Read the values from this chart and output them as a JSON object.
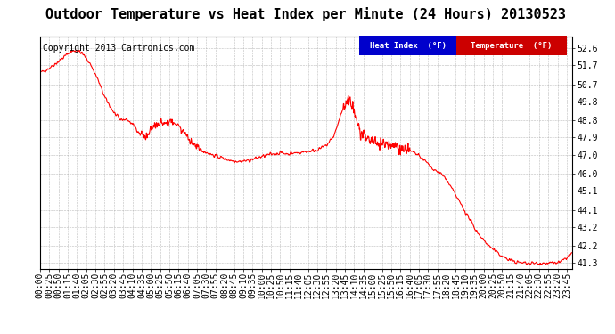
{
  "title": "Outdoor Temperature vs Heat Index per Minute (24 Hours) 20130523",
  "copyright_text": "Copyright 2013 Cartronics.com",
  "line_color": "#FF0000",
  "background_color": "#FFFFFF",
  "grid_color": "#AAAAAA",
  "yticks": [
    41.3,
    42.2,
    43.2,
    44.1,
    45.1,
    46.0,
    47.0,
    47.9,
    48.8,
    49.8,
    50.7,
    51.7,
    52.6
  ],
  "ymin": 41.0,
  "ymax": 53.2,
  "legend_heat_index_bg": "#0000CC",
  "legend_temp_bg": "#CC0000",
  "legend_text_color": "#FFFFFF",
  "legend_heat_index_label": "Heat Index  (°F)",
  "legend_temp_label": "Temperature  (°F)",
  "title_fontsize": 11,
  "copyright_fontsize": 7,
  "tick_fontsize": 7,
  "axes_bg": "#FFFFFF",
  "fig_width": 6.9,
  "fig_height": 3.75,
  "fig_dpi": 100
}
